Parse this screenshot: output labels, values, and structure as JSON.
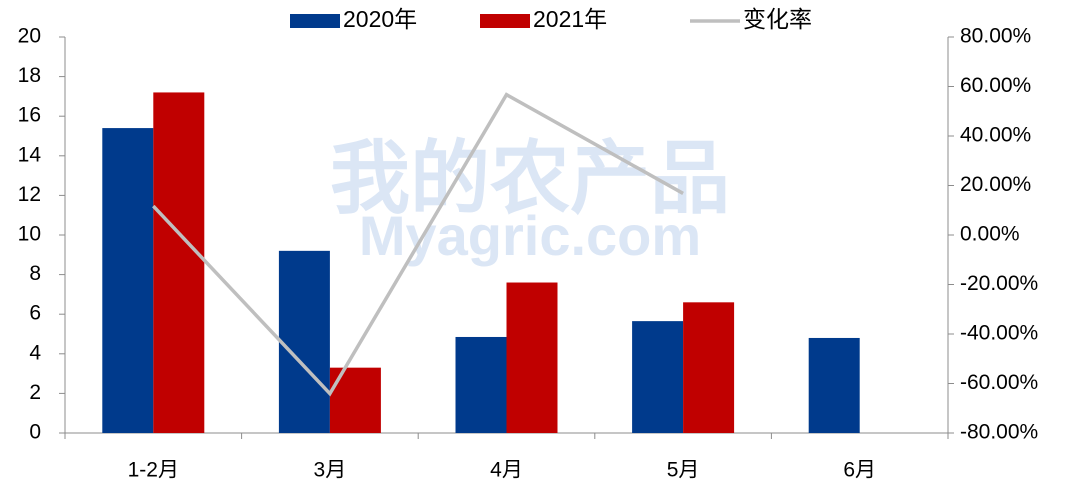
{
  "chart_data": {
    "type": "bar",
    "categories": [
      "1-2月",
      "3月",
      "4月",
      "5月",
      "6月"
    ],
    "series": [
      {
        "name": "2020年",
        "color": "#003a8c",
        "values": [
          15.4,
          9.2,
          4.85,
          5.65,
          4.8
        ]
      },
      {
        "name": "2021年",
        "color": "#c00000",
        "values": [
          17.2,
          3.3,
          7.6,
          6.6,
          null
        ]
      },
      {
        "name": "变化率",
        "color": "#bfbfbf",
        "type": "line",
        "axis": "y2",
        "values": [
          11.7,
          -64.1,
          56.7,
          16.8,
          null
        ]
      }
    ],
    "ylim": [
      0,
      20
    ],
    "yticks": [
      0,
      2,
      4,
      6,
      8,
      10,
      12,
      14,
      16,
      18,
      20
    ],
    "y2lim": [
      -80,
      80
    ],
    "y2ticks": [
      {
        "value": -80,
        "label": "-80.00%"
      },
      {
        "value": -60,
        "label": "-60.00%"
      },
      {
        "value": -40,
        "label": "-40.00%"
      },
      {
        "value": -20,
        "label": "-20.00%"
      },
      {
        "value": 0,
        "label": "0.00%"
      },
      {
        "value": 20,
        "label": "20.00%"
      },
      {
        "value": 40,
        "label": "40.00%"
      },
      {
        "value": 60,
        "label": "60.00%"
      },
      {
        "value": 80,
        "label": "80.00%"
      }
    ],
    "legend": "top",
    "watermark": [
      "我的农产品",
      "Myagric.com"
    ]
  }
}
